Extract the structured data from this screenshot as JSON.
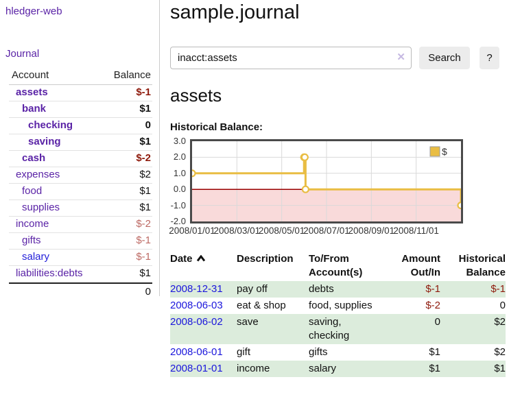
{
  "app": {
    "brand": "hledger-web",
    "nav_journal": "Journal"
  },
  "sidebar": {
    "header": {
      "account": "Account",
      "balance": "Balance"
    },
    "accounts": [
      {
        "name": "assets",
        "balance": "$-1"
      },
      {
        "name": "bank",
        "balance": "$1"
      },
      {
        "name": "checking",
        "balance": "0"
      },
      {
        "name": "saving",
        "balance": "$1"
      },
      {
        "name": "cash",
        "balance": "$-2"
      },
      {
        "name": "expenses",
        "balance": "$2"
      },
      {
        "name": "food",
        "balance": "$1"
      },
      {
        "name": "supplies",
        "balance": "$1"
      },
      {
        "name": "income",
        "balance": "$-2"
      },
      {
        "name": "gifts",
        "balance": "$-1"
      },
      {
        "name": "salary",
        "balance": "$-1"
      },
      {
        "name": "liabilities:debts",
        "balance": "$1"
      }
    ],
    "total": "0"
  },
  "header": {
    "title": "sample.journal"
  },
  "search": {
    "value": "inacct:assets",
    "clear_icon": "✕",
    "button": "Search",
    "help_button": "?"
  },
  "account_page": {
    "heading": "assets",
    "chart_label": "Historical Balance:"
  },
  "chart_data": {
    "type": "line",
    "title": "Historical Balance",
    "step": true,
    "legend": [
      "$"
    ],
    "legend_position": "top-right",
    "x": [
      "2008-01-01",
      "2008-06-01",
      "2008-06-02",
      "2008-06-03",
      "2008-12-31"
    ],
    "values": [
      1,
      2,
      2,
      0,
      -1
    ],
    "xrange": [
      "2008-01-01",
      "2008-12-31"
    ],
    "ylim": [
      -2,
      3
    ],
    "yticks": [
      "3.0",
      "2.0",
      "1.0",
      "0.0",
      "-1.0",
      "-2.0"
    ],
    "xticks": [
      "2008/01/01",
      "2008/03/01",
      "2008/05/01",
      "2008/07/01",
      "2008/09/01",
      "2008/11/01"
    ],
    "grid": true,
    "line_color": "#e9bd43",
    "negative_fill": "#f9dada",
    "zero_line_color": "#990000"
  },
  "transactions": {
    "headers": [
      {
        "l1": "Date",
        "l2": ""
      },
      {
        "l1": "Description",
        "l2": ""
      },
      {
        "l1": "To/From",
        "l2": "Account(s)"
      },
      {
        "l1": "Amount",
        "l2": "Out/In"
      },
      {
        "l1": "Historical",
        "l2": "Balance"
      }
    ],
    "rows": [
      {
        "date": "2008-12-31",
        "description": "pay off",
        "accounts": "debts",
        "amount": "$-1",
        "balance": "$-1"
      },
      {
        "date": "2008-06-03",
        "description": "eat & shop",
        "accounts": "food, supplies",
        "amount": "$-2",
        "balance": "0"
      },
      {
        "date": "2008-06-02",
        "description": "save",
        "accounts": "saving,\nchecking",
        "amount": "0",
        "balance": "$2"
      },
      {
        "date": "2008-06-01",
        "description": "gift",
        "accounts": "gifts",
        "amount": "$1",
        "balance": "$2"
      },
      {
        "date": "2008-01-01",
        "description": "income",
        "accounts": "salary",
        "amount": "$1",
        "balance": "$1"
      }
    ]
  },
  "colors": {
    "purple_link": "#5a23a6",
    "blue_link": "#1b16dc",
    "negative_strong": "#8e1a0c",
    "negative_soft": "#bd6a64",
    "row_green": "#dcecdc",
    "chart_gold": "#e9bd43",
    "chart_pink": "#f9dada",
    "zero_line": "#990000"
  }
}
